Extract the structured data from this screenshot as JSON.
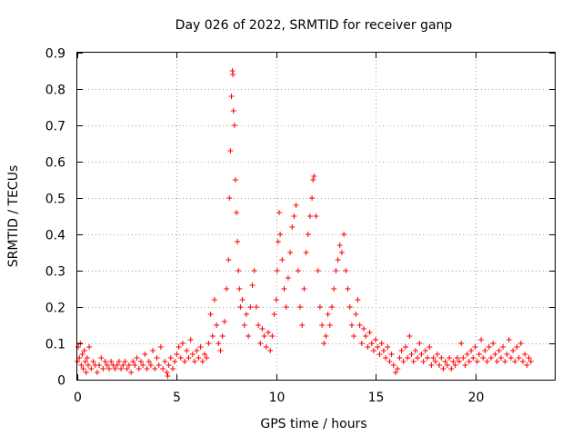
{
  "chart_data": {
    "type": "scatter",
    "title": "Day 026 of 2022, SRMTID for receiver ganp",
    "xlabel": "GPS time / hours",
    "ylabel": "SRMTID / TECUs",
    "xlim": [
      0,
      24
    ],
    "ylim": [
      0,
      0.9
    ],
    "xticks": [
      0,
      5,
      10,
      15,
      20
    ],
    "xtick_labels": [
      "0",
      "5",
      "10",
      "15",
      "20"
    ],
    "yticks": [
      0,
      0.1,
      0.2,
      0.3,
      0.4,
      0.5,
      0.6,
      0.7,
      0.8,
      0.9
    ],
    "ytick_labels": [
      "0",
      "0.1",
      "0.2",
      "0.3",
      "0.4",
      "0.5",
      "0.6",
      "0.7",
      "0.8",
      "0.9"
    ],
    "grid": true,
    "marker": "+",
    "series_color": "#ff0000",
    "series": [
      {
        "name": "SRMTID",
        "points": [
          [
            0.0,
            0.05
          ],
          [
            0.05,
            0.09
          ],
          [
            0.1,
            0.06
          ],
          [
            0.15,
            0.1
          ],
          [
            0.2,
            0.04
          ],
          [
            0.25,
            0.07
          ],
          [
            0.3,
            0.03
          ],
          [
            0.35,
            0.08
          ],
          [
            0.4,
            0.05
          ],
          [
            0.45,
            0.02
          ],
          [
            0.5,
            0.06
          ],
          [
            0.55,
            0.04
          ],
          [
            0.6,
            0.09
          ],
          [
            0.7,
            0.03
          ],
          [
            0.8,
            0.05
          ],
          [
            0.9,
            0.04
          ],
          [
            1.0,
            0.02
          ],
          [
            1.1,
            0.04
          ],
          [
            1.2,
            0.06
          ],
          [
            1.3,
            0.03
          ],
          [
            1.4,
            0.05
          ],
          [
            1.5,
            0.04
          ],
          [
            1.6,
            0.03
          ],
          [
            1.7,
            0.05
          ],
          [
            1.8,
            0.04
          ],
          [
            1.9,
            0.03
          ],
          [
            2.0,
            0.04
          ],
          [
            2.1,
            0.05
          ],
          [
            2.2,
            0.03
          ],
          [
            2.3,
            0.04
          ],
          [
            2.4,
            0.05
          ],
          [
            2.5,
            0.03
          ],
          [
            2.6,
            0.04
          ],
          [
            2.7,
            0.02
          ],
          [
            2.8,
            0.05
          ],
          [
            2.9,
            0.04
          ],
          [
            3.0,
            0.06
          ],
          [
            3.1,
            0.03
          ],
          [
            3.2,
            0.05
          ],
          [
            3.3,
            0.04
          ],
          [
            3.4,
            0.07
          ],
          [
            3.5,
            0.03
          ],
          [
            3.6,
            0.05
          ],
          [
            3.7,
            0.04
          ],
          [
            3.8,
            0.08
          ],
          [
            3.9,
            0.03
          ],
          [
            4.0,
            0.06
          ],
          [
            4.1,
            0.04
          ],
          [
            4.2,
            0.09
          ],
          [
            4.3,
            0.03
          ],
          [
            4.4,
            0.05
          ],
          [
            4.5,
            0.02
          ],
          [
            4.55,
            0.01
          ],
          [
            4.6,
            0.04
          ],
          [
            4.7,
            0.06
          ],
          [
            4.8,
            0.03
          ],
          [
            4.9,
            0.05
          ],
          [
            5.0,
            0.07
          ],
          [
            5.1,
            0.09
          ],
          [
            5.2,
            0.06
          ],
          [
            5.3,
            0.1
          ],
          [
            5.4,
            0.05
          ],
          [
            5.5,
            0.08
          ],
          [
            5.6,
            0.06
          ],
          [
            5.7,
            0.11
          ],
          [
            5.8,
            0.07
          ],
          [
            5.9,
            0.05
          ],
          [
            6.0,
            0.08
          ],
          [
            6.1,
            0.06
          ],
          [
            6.2,
            0.09
          ],
          [
            6.3,
            0.05
          ],
          [
            6.4,
            0.07
          ],
          [
            6.5,
            0.06
          ],
          [
            6.6,
            0.1
          ],
          [
            6.7,
            0.18
          ],
          [
            6.8,
            0.12
          ],
          [
            6.9,
            0.22
          ],
          [
            7.0,
            0.15
          ],
          [
            7.1,
            0.1
          ],
          [
            7.2,
            0.08
          ],
          [
            7.3,
            0.12
          ],
          [
            7.4,
            0.16
          ],
          [
            7.5,
            0.25
          ],
          [
            7.6,
            0.33
          ],
          [
            7.65,
            0.5
          ],
          [
            7.7,
            0.63
          ],
          [
            7.75,
            0.78
          ],
          [
            7.8,
            0.85
          ],
          [
            7.82,
            0.84
          ],
          [
            7.85,
            0.74
          ],
          [
            7.9,
            0.7
          ],
          [
            7.95,
            0.55
          ],
          [
            8.0,
            0.46
          ],
          [
            8.05,
            0.38
          ],
          [
            8.1,
            0.3
          ],
          [
            8.15,
            0.25
          ],
          [
            8.2,
            0.2
          ],
          [
            8.3,
            0.22
          ],
          [
            8.4,
            0.15
          ],
          [
            8.5,
            0.18
          ],
          [
            8.6,
            0.12
          ],
          [
            8.7,
            0.2
          ],
          [
            8.8,
            0.26
          ],
          [
            8.9,
            0.3
          ],
          [
            9.0,
            0.2
          ],
          [
            9.1,
            0.15
          ],
          [
            9.2,
            0.1
          ],
          [
            9.3,
            0.14
          ],
          [
            9.4,
            0.12
          ],
          [
            9.5,
            0.09
          ],
          [
            9.6,
            0.13
          ],
          [
            9.7,
            0.08
          ],
          [
            9.8,
            0.12
          ],
          [
            9.9,
            0.18
          ],
          [
            10.0,
            0.22
          ],
          [
            10.05,
            0.3
          ],
          [
            10.1,
            0.38
          ],
          [
            10.15,
            0.46
          ],
          [
            10.2,
            0.4
          ],
          [
            10.3,
            0.33
          ],
          [
            10.4,
            0.25
          ],
          [
            10.5,
            0.2
          ],
          [
            10.6,
            0.28
          ],
          [
            10.7,
            0.35
          ],
          [
            10.8,
            0.42
          ],
          [
            10.9,
            0.45
          ],
          [
            11.0,
            0.48
          ],
          [
            11.1,
            0.3
          ],
          [
            11.2,
            0.2
          ],
          [
            11.3,
            0.15
          ],
          [
            11.4,
            0.25
          ],
          [
            11.5,
            0.35
          ],
          [
            11.6,
            0.4
          ],
          [
            11.7,
            0.45
          ],
          [
            11.8,
            0.5
          ],
          [
            11.85,
            0.55
          ],
          [
            11.9,
            0.56
          ],
          [
            12.0,
            0.45
          ],
          [
            12.1,
            0.3
          ],
          [
            12.2,
            0.2
          ],
          [
            12.3,
            0.15
          ],
          [
            12.4,
            0.1
          ],
          [
            12.5,
            0.12
          ],
          [
            12.6,
            0.18
          ],
          [
            12.7,
            0.15
          ],
          [
            12.8,
            0.2
          ],
          [
            12.9,
            0.25
          ],
          [
            13.0,
            0.3
          ],
          [
            13.1,
            0.33
          ],
          [
            13.2,
            0.37
          ],
          [
            13.3,
            0.35
          ],
          [
            13.4,
            0.4
          ],
          [
            13.5,
            0.3
          ],
          [
            13.6,
            0.25
          ],
          [
            13.7,
            0.2
          ],
          [
            13.8,
            0.15
          ],
          [
            13.9,
            0.12
          ],
          [
            14.0,
            0.18
          ],
          [
            14.1,
            0.22
          ],
          [
            14.2,
            0.15
          ],
          [
            14.3,
            0.1
          ],
          [
            14.4,
            0.14
          ],
          [
            14.5,
            0.12
          ],
          [
            14.6,
            0.09
          ],
          [
            14.7,
            0.13
          ],
          [
            14.8,
            0.1
          ],
          [
            14.9,
            0.08
          ],
          [
            15.0,
            0.11
          ],
          [
            15.1,
            0.09
          ],
          [
            15.2,
            0.07
          ],
          [
            15.3,
            0.1
          ],
          [
            15.4,
            0.08
          ],
          [
            15.5,
            0.06
          ],
          [
            15.6,
            0.09
          ],
          [
            15.7,
            0.05
          ],
          [
            15.8,
            0.07
          ],
          [
            15.9,
            0.04
          ],
          [
            16.0,
            0.02
          ],
          [
            16.1,
            0.03
          ],
          [
            16.2,
            0.06
          ],
          [
            16.3,
            0.08
          ],
          [
            16.4,
            0.05
          ],
          [
            16.5,
            0.09
          ],
          [
            16.6,
            0.06
          ],
          [
            16.7,
            0.12
          ],
          [
            16.8,
            0.07
          ],
          [
            16.9,
            0.05
          ],
          [
            17.0,
            0.08
          ],
          [
            17.1,
            0.06
          ],
          [
            17.2,
            0.1
          ],
          [
            17.3,
            0.07
          ],
          [
            17.4,
            0.05
          ],
          [
            17.5,
            0.08
          ],
          [
            17.6,
            0.06
          ],
          [
            17.7,
            0.09
          ],
          [
            17.8,
            0.04
          ],
          [
            17.9,
            0.06
          ],
          [
            18.0,
            0.05
          ],
          [
            18.1,
            0.07
          ],
          [
            18.2,
            0.04
          ],
          [
            18.3,
            0.06
          ],
          [
            18.4,
            0.03
          ],
          [
            18.5,
            0.05
          ],
          [
            18.6,
            0.04
          ],
          [
            18.7,
            0.06
          ],
          [
            18.8,
            0.03
          ],
          [
            18.9,
            0.05
          ],
          [
            19.0,
            0.04
          ],
          [
            19.1,
            0.06
          ],
          [
            19.2,
            0.05
          ],
          [
            19.3,
            0.1
          ],
          [
            19.4,
            0.06
          ],
          [
            19.5,
            0.04
          ],
          [
            19.6,
            0.07
          ],
          [
            19.7,
            0.05
          ],
          [
            19.8,
            0.08
          ],
          [
            19.9,
            0.06
          ],
          [
            20.0,
            0.09
          ],
          [
            20.1,
            0.05
          ],
          [
            20.2,
            0.07
          ],
          [
            20.3,
            0.11
          ],
          [
            20.4,
            0.06
          ],
          [
            20.5,
            0.08
          ],
          [
            20.6,
            0.05
          ],
          [
            20.7,
            0.09
          ],
          [
            20.8,
            0.06
          ],
          [
            20.9,
            0.1
          ],
          [
            21.0,
            0.07
          ],
          [
            21.1,
            0.05
          ],
          [
            21.2,
            0.08
          ],
          [
            21.3,
            0.06
          ],
          [
            21.4,
            0.09
          ],
          [
            21.5,
            0.05
          ],
          [
            21.6,
            0.07
          ],
          [
            21.7,
            0.11
          ],
          [
            21.8,
            0.06
          ],
          [
            21.9,
            0.08
          ],
          [
            22.0,
            0.05
          ],
          [
            22.1,
            0.09
          ],
          [
            22.2,
            0.06
          ],
          [
            22.3,
            0.1
          ],
          [
            22.4,
            0.05
          ],
          [
            22.5,
            0.07
          ],
          [
            22.6,
            0.04
          ],
          [
            22.7,
            0.06
          ],
          [
            22.8,
            0.05
          ]
        ]
      }
    ]
  }
}
